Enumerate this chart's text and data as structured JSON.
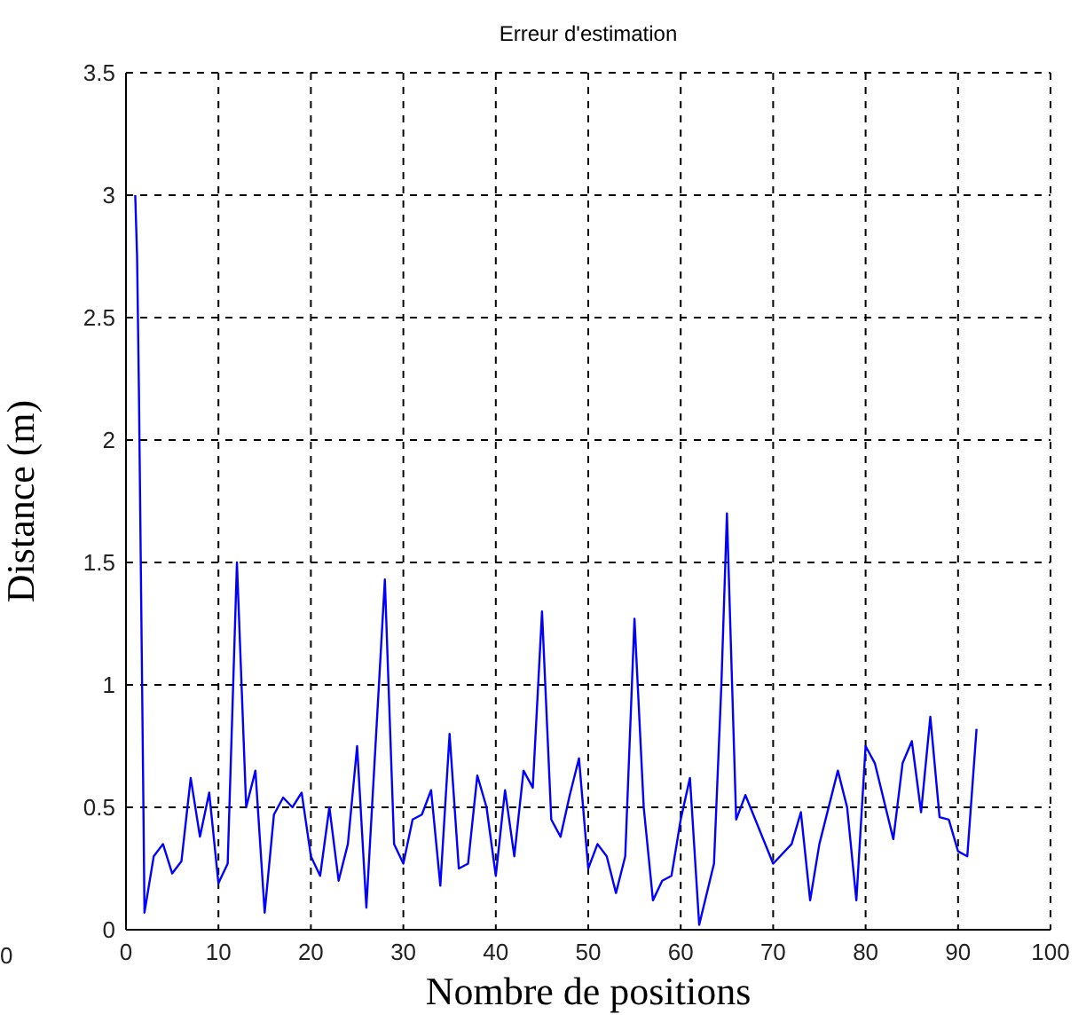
{
  "chart_data": {
    "type": "line",
    "title": "Erreur d'estimation",
    "xlabel": "Nombre de positions",
    "ylabel": "Distance (m)",
    "annotations": [
      "0"
    ],
    "x": [
      1,
      1.2,
      1.4,
      1.7,
      1.9,
      2,
      3,
      4,
      5,
      6,
      7,
      8,
      9,
      10,
      11,
      12,
      13,
      14,
      15,
      16,
      17,
      18,
      19,
      20,
      21,
      22,
      23,
      24,
      25,
      26,
      28,
      29,
      30,
      31,
      32,
      33,
      34,
      35,
      36,
      37,
      38,
      39,
      40,
      41,
      42,
      43,
      44,
      45,
      46,
      47,
      48,
      49,
      50,
      51,
      52,
      53,
      54,
      55,
      56,
      57,
      58,
      59,
      60,
      61,
      62,
      63.6,
      64.4,
      65,
      66,
      67,
      70,
      72,
      73,
      74,
      75,
      77,
      78,
      79,
      80,
      81,
      83,
      84,
      85,
      86,
      87,
      88,
      89,
      90,
      91,
      92
    ],
    "series": [
      {
        "color": "#0000ff",
        "values": [
          3.0,
          2.75,
          2.2,
          1.15,
          0.45,
          0.07,
          0.3,
          0.35,
          0.23,
          0.28,
          0.62,
          0.38,
          0.56,
          0.19,
          0.27,
          1.5,
          0.5,
          0.65,
          0.07,
          0.47,
          0.54,
          0.5,
          0.56,
          0.3,
          0.22,
          0.5,
          0.2,
          0.35,
          0.75,
          0.09,
          1.43,
          0.35,
          0.27,
          0.45,
          0.47,
          0.57,
          0.18,
          0.8,
          0.25,
          0.27,
          0.63,
          0.5,
          0.22,
          0.57,
          0.3,
          0.65,
          0.58,
          1.3,
          0.45,
          0.38,
          0.55,
          0.7,
          0.25,
          0.35,
          0.3,
          0.15,
          0.3,
          1.27,
          0.5,
          0.12,
          0.2,
          0.22,
          0.45,
          0.62,
          0.02,
          0.27,
          1.0,
          1.7,
          0.45,
          0.55,
          0.27,
          0.35,
          0.48,
          0.12,
          0.35,
          0.65,
          0.5,
          0.12,
          0.75,
          0.68,
          0.37,
          0.68,
          0.77,
          0.48,
          0.87,
          0.46,
          0.45,
          0.32,
          0.3,
          0.82
        ]
      }
    ],
    "xlim": [
      0,
      100
    ],
    "xticks": [
      0,
      10,
      20,
      30,
      40,
      50,
      60,
      70,
      80,
      90,
      100
    ],
    "ylim": [
      0,
      3.5
    ],
    "yticks": [
      0,
      0.5,
      1,
      1.5,
      2,
      2.5,
      3,
      3.5
    ],
    "grid": true,
    "marker": "none",
    "line_style": "solid"
  }
}
